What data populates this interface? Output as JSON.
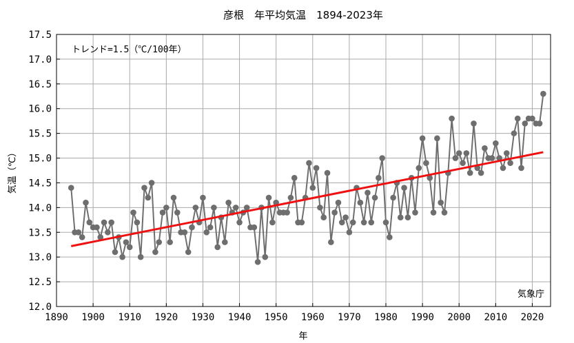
{
  "chart_data": {
    "type": "line",
    "title": "彦根　年平均気温　1894-2023年",
    "xlabel": "年",
    "ylabel": "気温（℃）",
    "annotation": "トレンド=1.5（℃/100年）",
    "credit": "気象庁",
    "xlim": [
      1890,
      2025
    ],
    "ylim": [
      12.0,
      17.5
    ],
    "xticks": [
      1890,
      1900,
      1910,
      1920,
      1930,
      1940,
      1950,
      1960,
      1970,
      1980,
      1990,
      2000,
      2010,
      2020
    ],
    "yticks": [
      12.0,
      12.5,
      13.0,
      13.5,
      14.0,
      14.5,
      15.0,
      15.5,
      16.0,
      16.5,
      17.0,
      17.5
    ],
    "grid": true,
    "x": [
      1894,
      1895,
      1896,
      1897,
      1898,
      1899,
      1900,
      1901,
      1902,
      1903,
      1904,
      1905,
      1906,
      1907,
      1908,
      1909,
      1910,
      1911,
      1912,
      1913,
      1914,
      1915,
      1916,
      1917,
      1918,
      1919,
      1920,
      1921,
      1922,
      1923,
      1924,
      1925,
      1926,
      1927,
      1928,
      1929,
      1930,
      1931,
      1932,
      1933,
      1934,
      1935,
      1936,
      1937,
      1938,
      1939,
      1940,
      1941,
      1942,
      1943,
      1944,
      1945,
      1946,
      1947,
      1948,
      1949,
      1950,
      1951,
      1952,
      1953,
      1954,
      1955,
      1956,
      1957,
      1958,
      1959,
      1960,
      1961,
      1962,
      1963,
      1964,
      1965,
      1966,
      1967,
      1968,
      1969,
      1970,
      1971,
      1972,
      1973,
      1974,
      1975,
      1976,
      1977,
      1978,
      1979,
      1980,
      1981,
      1982,
      1983,
      1984,
      1985,
      1986,
      1987,
      1988,
      1989,
      1990,
      1991,
      1992,
      1993,
      1994,
      1995,
      1996,
      1997,
      1998,
      1999,
      2000,
      2001,
      2002,
      2003,
      2004,
      2005,
      2006,
      2007,
      2008,
      2009,
      2010,
      2011,
      2012,
      2013,
      2014,
      2015,
      2016,
      2017,
      2018,
      2019,
      2020,
      2021,
      2022,
      2023
    ],
    "series": [
      {
        "values": [
          14.4,
          13.5,
          13.5,
          13.4,
          14.1,
          13.7,
          13.6,
          13.6,
          13.4,
          13.7,
          13.5,
          13.7,
          13.1,
          13.4,
          13.0,
          13.3,
          13.2,
          13.9,
          13.7,
          13.0,
          14.4,
          14.2,
          14.5,
          13.1,
          13.3,
          13.9,
          14.0,
          13.3,
          14.2,
          13.9,
          13.5,
          13.5,
          13.1,
          13.6,
          14.0,
          13.7,
          14.2,
          13.5,
          13.6,
          14.0,
          13.2,
          13.8,
          13.3,
          14.1,
          13.9,
          14.0,
          13.7,
          13.9,
          14.0,
          13.6,
          13.6,
          12.9,
          14.0,
          13.0,
          14.2,
          13.7,
          14.1,
          13.9,
          13.9,
          13.9,
          14.2,
          14.6,
          13.7,
          13.7,
          14.2,
          14.9,
          14.4,
          14.8,
          14.0,
          13.8,
          14.7,
          13.3,
          13.9,
          14.1,
          13.7,
          13.8,
          13.5,
          13.7,
          14.4,
          14.1,
          13.7,
          14.3,
          13.7,
          14.2,
          14.6,
          15.0,
          13.7,
          13.4,
          14.2,
          14.5,
          13.8,
          14.4,
          13.8,
          14.6,
          13.9,
          14.8,
          15.4,
          14.9,
          14.6,
          13.9,
          15.4,
          14.1,
          13.9,
          14.7,
          15.8,
          15.0,
          15.1,
          14.9,
          15.1,
          14.7,
          15.7,
          14.8,
          14.7,
          15.2,
          15.0,
          15.0,
          15.3,
          15.0,
          14.8,
          15.1,
          14.9,
          15.5,
          15.8,
          14.8,
          15.7,
          15.8,
          15.8,
          15.7,
          15.7,
          16.3
        ],
        "color": "#6e6e6e"
      },
      {
        "values": [
          13.22,
          15.12
        ],
        "x": [
          1894,
          2023
        ],
        "color": "#ee1111"
      }
    ]
  }
}
